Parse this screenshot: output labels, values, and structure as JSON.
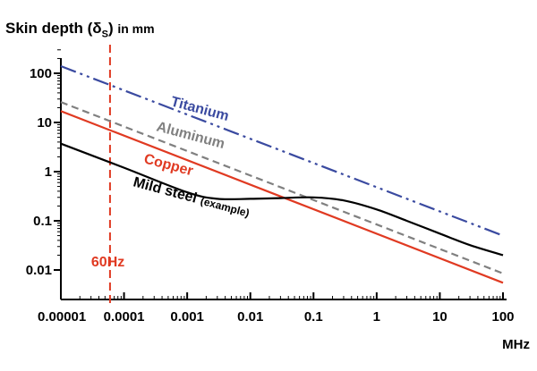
{
  "chart_data": {
    "type": "line",
    "ylabel": {
      "prefix": "Skin depth (",
      "symbol": "δ",
      "subscript": "S",
      "suffix": ")",
      "unit_text": "in mm"
    },
    "xlabel": "MHz",
    "x_scale": "log",
    "y_scale": "log",
    "xlim": [
      1e-05,
      100
    ],
    "ylim": [
      0.005,
      300
    ],
    "x_ticks": [
      {
        "value": 1e-05,
        "label": "0.00001"
      },
      {
        "value": 0.0001,
        "label": "0.0001"
      },
      {
        "value": 0.001,
        "label": "0.001"
      },
      {
        "value": 0.01,
        "label": "0.01"
      },
      {
        "value": 0.1,
        "label": "0.1"
      },
      {
        "value": 1,
        "label": "1"
      },
      {
        "value": 10,
        "label": "10"
      },
      {
        "value": 100,
        "label": "100"
      }
    ],
    "y_ticks": [
      {
        "value": 100,
        "label": "100"
      },
      {
        "value": 10,
        "label": "10"
      },
      {
        "value": 1,
        "label": "1"
      },
      {
        "value": 0.1,
        "label": "0.1"
      },
      {
        "value": 0.01,
        "label": "0.01"
      }
    ],
    "grid": false,
    "series": [
      {
        "name": "Titanium",
        "color": "#3a4aa0",
        "style": "dash-dot-dot",
        "points": [
          [
            1e-05,
            140
          ],
          [
            100,
            0.05
          ]
        ]
      },
      {
        "name": "Aluminum",
        "color": "#808080",
        "style": "dashed",
        "points": [
          [
            1e-05,
            26
          ],
          [
            100,
            0.0085
          ]
        ]
      },
      {
        "name": "Copper",
        "color": "#e03a22",
        "style": "solid",
        "points": [
          [
            1e-05,
            17
          ],
          [
            100,
            0.0055
          ]
        ]
      },
      {
        "name": "Mild steel",
        "note": "(example)",
        "color": "#000000",
        "style": "solid",
        "points": [
          [
            1e-05,
            3.7
          ],
          [
            0.0001,
            1.2
          ],
          [
            0.001,
            0.38
          ],
          [
            0.003,
            0.28
          ],
          [
            0.01,
            0.28
          ],
          [
            0.03,
            0.29
          ],
          [
            0.1,
            0.3
          ],
          [
            0.3,
            0.26
          ],
          [
            1,
            0.17
          ],
          [
            3,
            0.1
          ],
          [
            10,
            0.055
          ],
          [
            30,
            0.032
          ],
          [
            100,
            0.02
          ]
        ]
      }
    ],
    "markers": [
      {
        "label": "60Hz",
        "x": 6e-05,
        "color": "#e03a22",
        "style": "dashed"
      }
    ]
  }
}
